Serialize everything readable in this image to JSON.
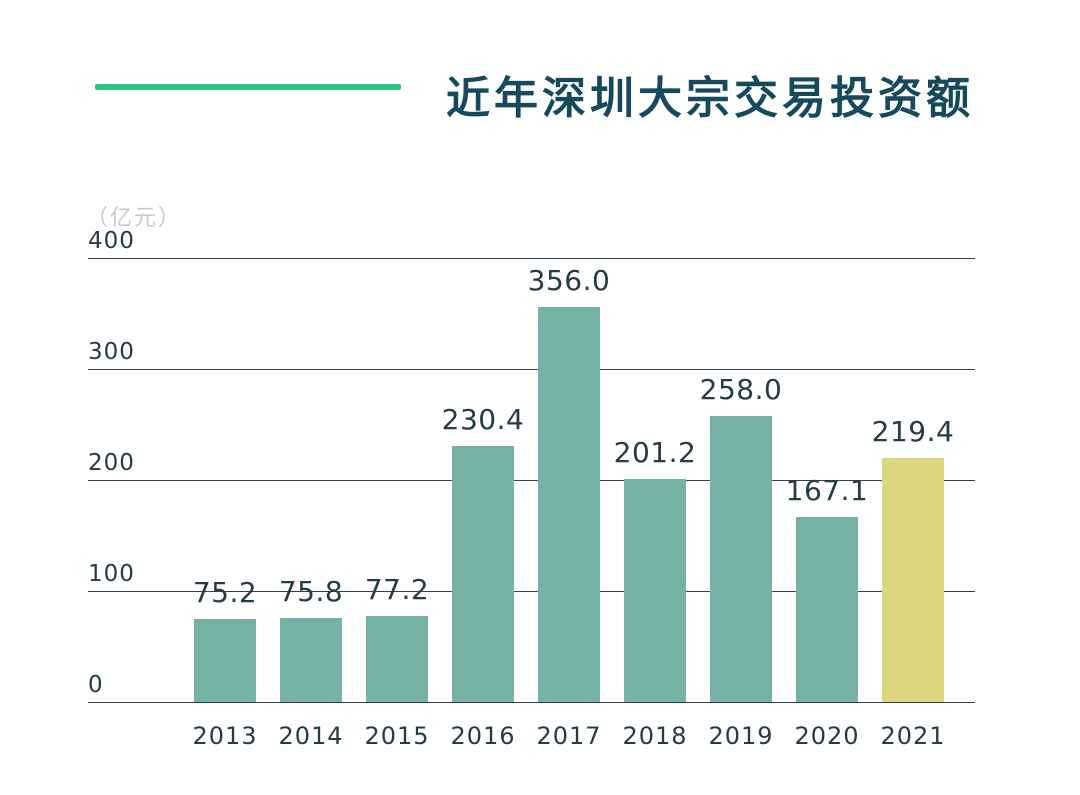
{
  "header": {
    "title": "近年深圳大宗交易投资额",
    "accent_color": "#2ec482",
    "title_color": "#17495c"
  },
  "chart_data": {
    "type": "bar",
    "title": "近年深圳大宗交易投资额",
    "unit_label": "（亿元）",
    "categories": [
      "2013",
      "2014",
      "2015",
      "2016",
      "2017",
      "2018",
      "2019",
      "2020",
      "2021"
    ],
    "values": [
      75.2,
      75.8,
      77.2,
      230.4,
      356.0,
      201.2,
      258.0,
      167.1,
      219.4
    ],
    "value_labels": [
      "75.2",
      "75.8",
      "77.2",
      "230.4",
      "356.0",
      "201.2",
      "258.0",
      "167.1",
      "219.4"
    ],
    "yticks": [
      0,
      100,
      200,
      300,
      400
    ],
    "ylim": [
      0,
      400
    ],
    "grid": true,
    "legend": "none",
    "bar_color": "#75b1a4",
    "highlight_color": "#dcd67f",
    "highlight_index": 8,
    "text_color": "#243b48",
    "unit_label_color": "#c7cbca"
  }
}
